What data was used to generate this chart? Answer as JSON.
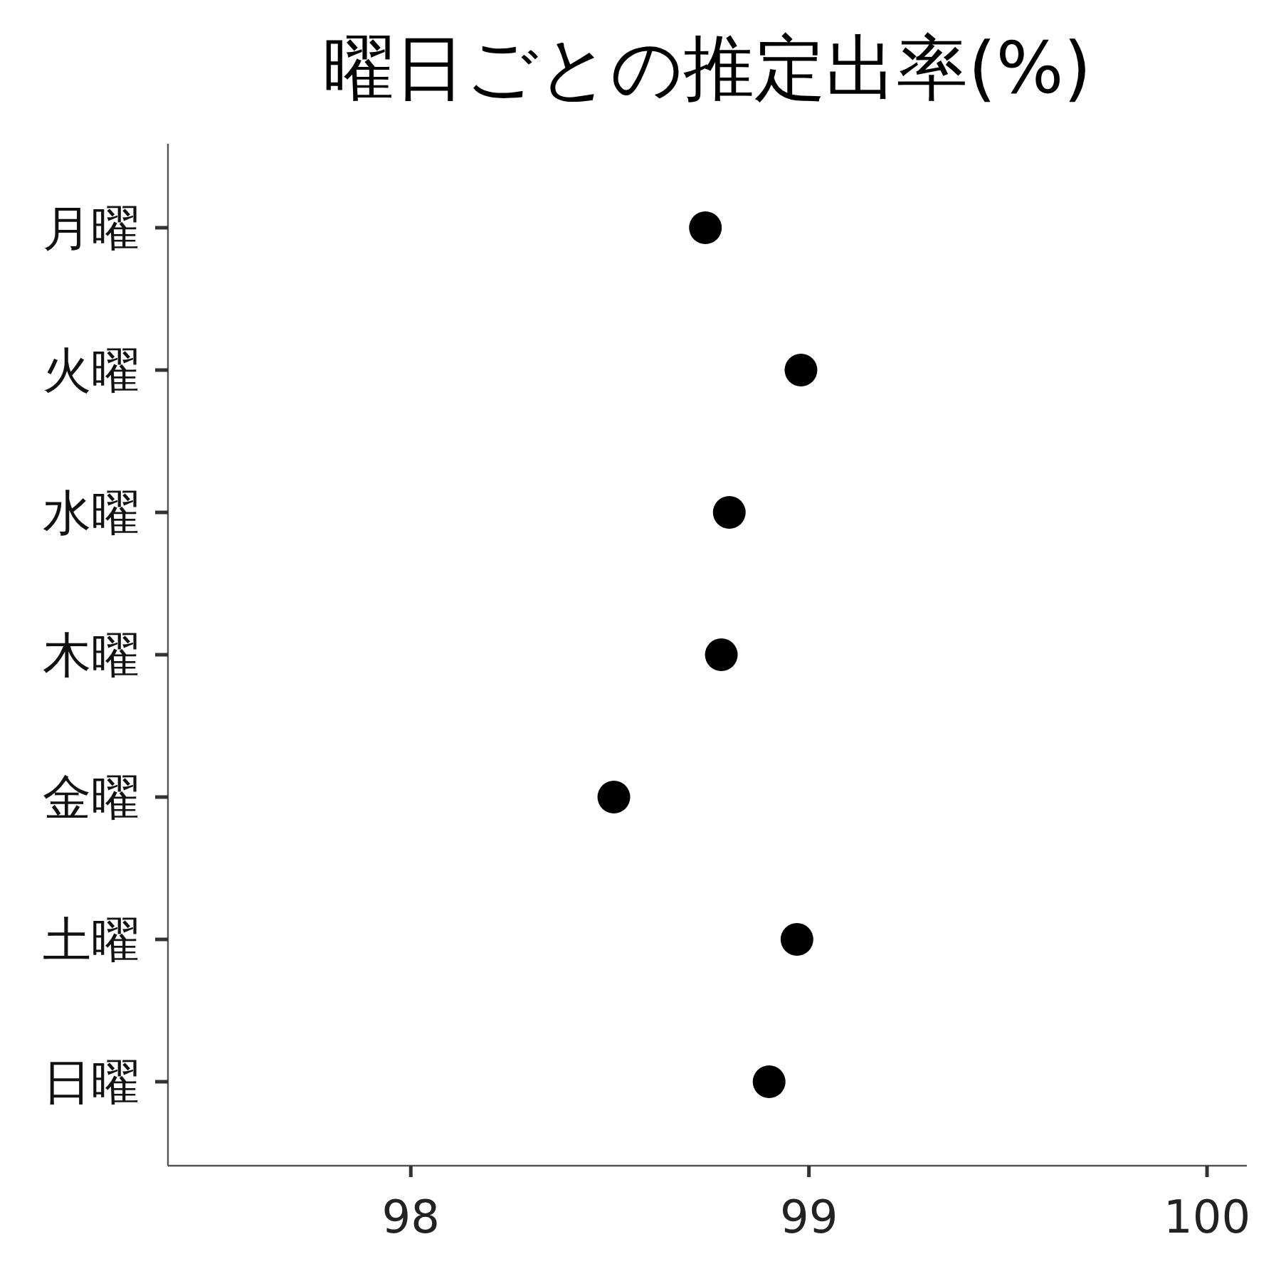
{
  "chart_data": {
    "type": "scatter",
    "title": "曜日ごとの推定出率(%)",
    "orientation": "horizontal",
    "categories": [
      "月曜",
      "火曜",
      "水曜",
      "木曜",
      "金曜",
      "土曜",
      "日曜"
    ],
    "series": [
      {
        "color": "#000000",
        "values": [
          98.74,
          98.98,
          98.8,
          98.78,
          98.51,
          98.97,
          98.9
        ]
      }
    ],
    "xlim": [
      97.39,
      100.1
    ],
    "xticks": [
      98,
      99,
      100
    ],
    "marker": "circle",
    "grid": false
  }
}
